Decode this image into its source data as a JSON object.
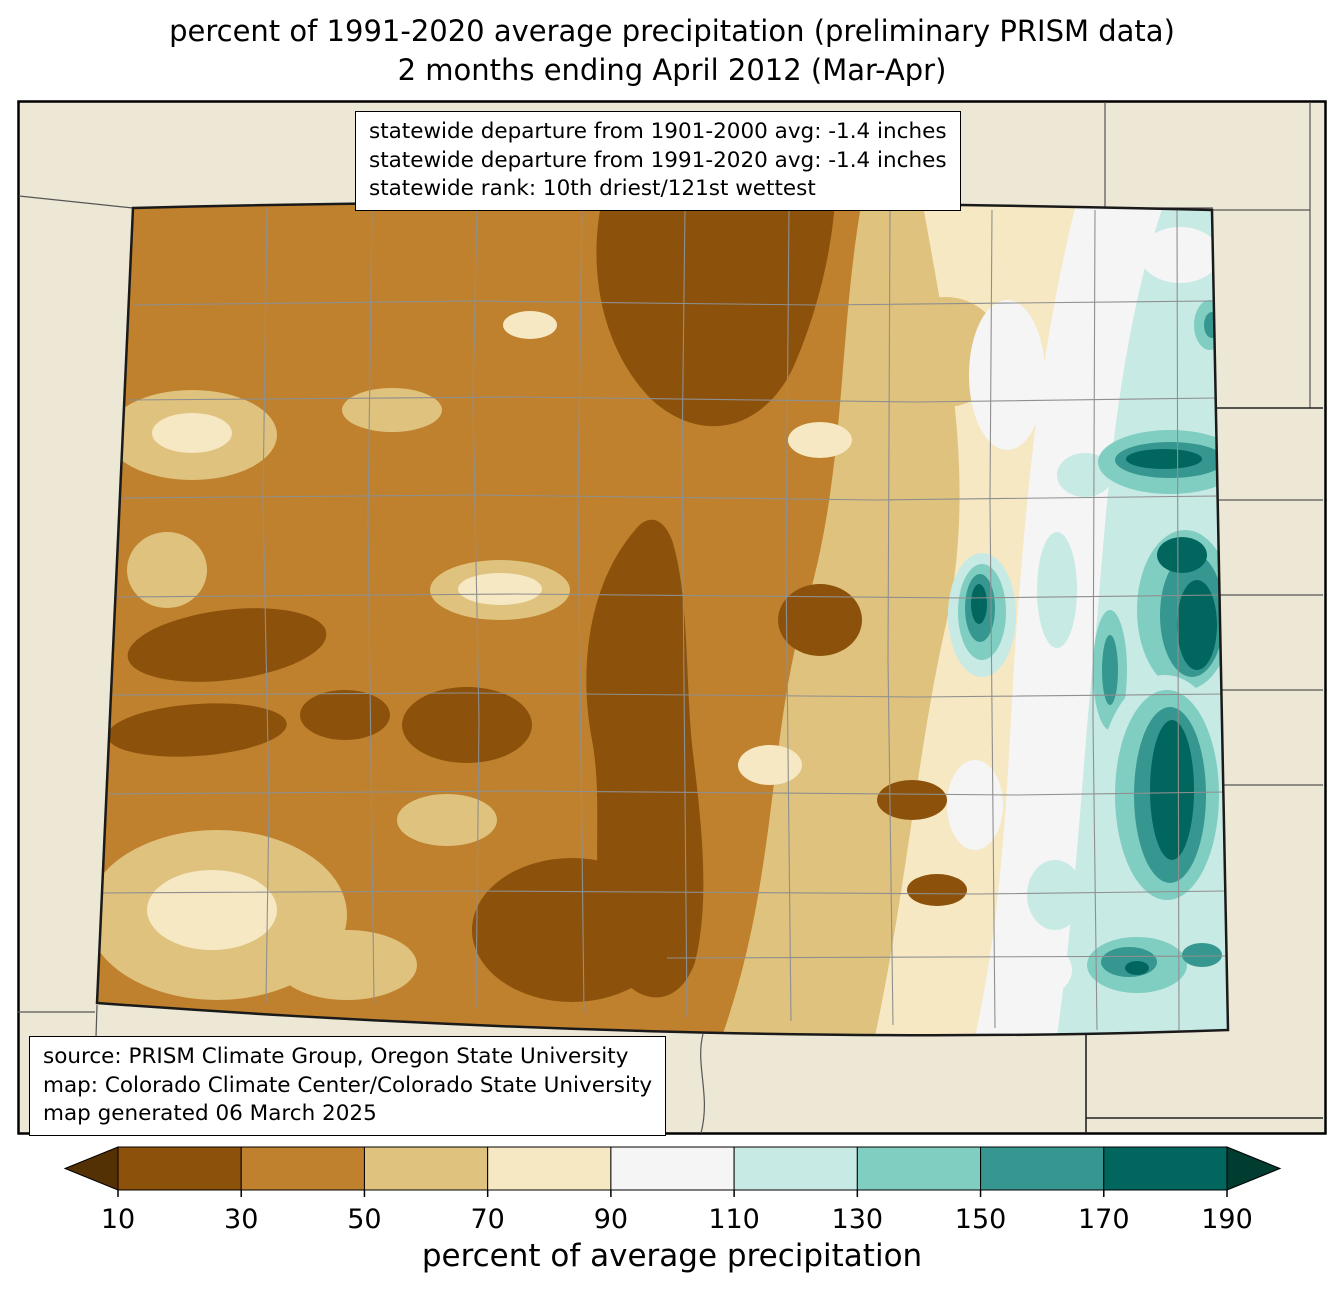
{
  "title": {
    "line1": "percent of 1991-2020 average precipitation (preliminary PRISM data)",
    "line2": "2 months ending April 2012 (Mar-Apr)"
  },
  "stats_box": {
    "lines": [
      "statewide departure from 1901-2000 avg: -1.4 inches",
      "statewide departure from 1991-2020 avg: -1.4 inches",
      "statewide rank: 10th driest/121st wettest"
    ]
  },
  "source_box": {
    "lines": [
      "source: PRISM Climate Group, Oregon State University",
      "map: Colorado Climate Center/Colorado State University",
      "map generated 06 March 2025"
    ]
  },
  "colorbar": {
    "label": "percent of average precipitation",
    "tick_labels": [
      "10",
      "30",
      "50",
      "70",
      "90",
      "110",
      "130",
      "150",
      "170",
      "190"
    ],
    "segment_colors": [
      "#8c510a",
      "#bf812d",
      "#dfc27d",
      "#f6e8c3",
      "#f5f5f5",
      "#c7eae5",
      "#80cdc1",
      "#35978f",
      "#01665e"
    ],
    "under_arrow_color": "#543005",
    "over_arrow_color": "#003c30"
  },
  "map": {
    "region": "Colorado",
    "background_color": "#ece8d5",
    "county_line_color": "#8f8f8f",
    "state_border_color": "#1a1a1a"
  },
  "chart_data": {
    "type": "heatmap",
    "title": "percent of 1991-2020 average precipitation (preliminary PRISM data), 2 months ending April 2012 (Mar-Apr)",
    "legend_label": "percent of average precipitation",
    "bin_edges_percent": [
      10,
      30,
      50,
      70,
      90,
      110,
      130,
      150,
      170,
      190
    ],
    "statewide_departure_from_1901_2000_avg_inches": -1.4,
    "statewide_departure_from_1991_2020_avg_inches": -1.4,
    "statewide_rank": "10th driest/121st wettest",
    "spatial_pattern": "western and central Colorado mostly 10-50% of average with darkest (10-30%) pockets over the central mountains, northwest and south-central areas; eastern plains transition through 70-110%; far eastern border counties 110% to over 190% with dark teal maxima along the Kansas/Nebraska border"
  }
}
